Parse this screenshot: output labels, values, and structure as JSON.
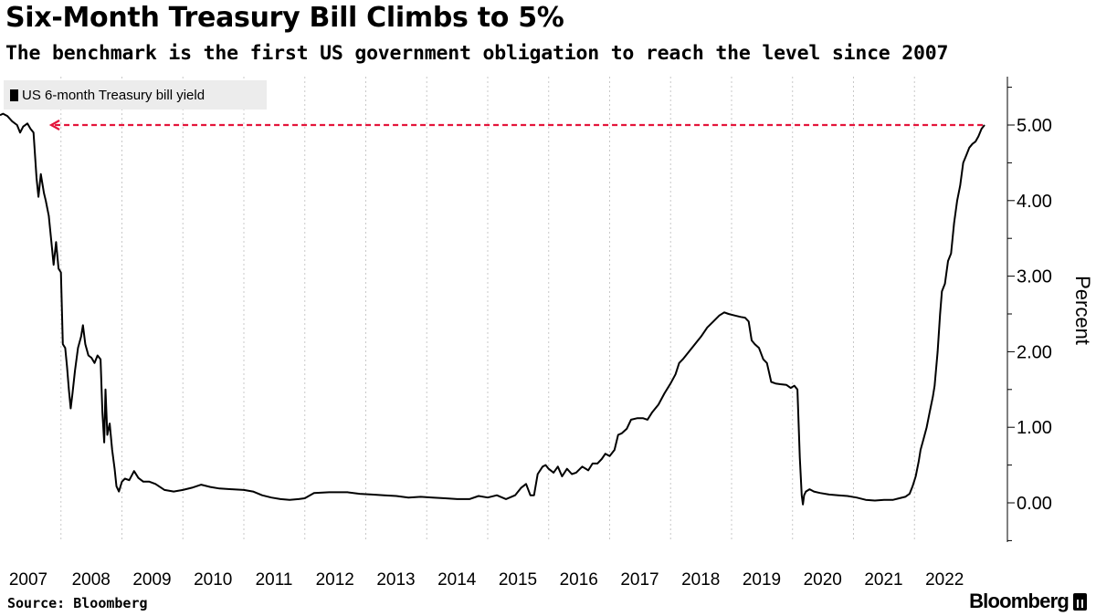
{
  "header": {
    "title": "Six-Month Treasury Bill Climbs to 5%",
    "subtitle": "The benchmark is the first US government obligation to reach the level since 2007"
  },
  "footer": {
    "source": "Source: Bloomberg",
    "brand": "Bloomberg"
  },
  "chart_data": {
    "type": "line",
    "ylabel": "Percent",
    "xlabel": "",
    "ylim": [
      -0.5,
      5.6
    ],
    "xlim": [
      2007.0,
      2023.15
    ],
    "grid": {
      "vertical": true,
      "horizontal": false,
      "style": "dotted"
    },
    "legend_position": "top-left",
    "yticks": [
      0,
      1,
      2,
      3,
      4,
      5
    ],
    "ytick_labels": [
      "0.00",
      "1.00",
      "2.00",
      "3.00",
      "4.00",
      "5.00"
    ],
    "xtick_labels": [
      "2007",
      "2008",
      "2009",
      "2010",
      "2011",
      "2012",
      "2013",
      "2014",
      "2015",
      "2016",
      "2017",
      "2018",
      "2019",
      "2020",
      "2021",
      "2022"
    ],
    "xtick_positions": [
      2007,
      2008,
      2009,
      2010,
      2011,
      2012,
      2013,
      2014,
      2015,
      2016,
      2017,
      2018,
      2019,
      2020,
      2021,
      2022
    ],
    "series": [
      {
        "name": "US 6-month Treasury bill yield",
        "color": "#000000",
        "points": [
          [
            2007.0,
            5.13
          ],
          [
            2007.05,
            5.15
          ],
          [
            2007.12,
            5.12
          ],
          [
            2007.2,
            5.05
          ],
          [
            2007.28,
            5.0
          ],
          [
            2007.33,
            4.9
          ],
          [
            2007.38,
            4.98
          ],
          [
            2007.45,
            5.02
          ],
          [
            2007.5,
            4.95
          ],
          [
            2007.55,
            4.9
          ],
          [
            2007.6,
            4.3
          ],
          [
            2007.63,
            4.05
          ],
          [
            2007.67,
            4.35
          ],
          [
            2007.72,
            4.1
          ],
          [
            2007.75,
            4.0
          ],
          [
            2007.8,
            3.8
          ],
          [
            2007.85,
            3.4
          ],
          [
            2007.88,
            3.15
          ],
          [
            2007.92,
            3.45
          ],
          [
            2007.96,
            3.1
          ],
          [
            2008.0,
            3.05
          ],
          [
            2008.03,
            2.1
          ],
          [
            2008.07,
            2.05
          ],
          [
            2008.1,
            1.8
          ],
          [
            2008.13,
            1.5
          ],
          [
            2008.16,
            1.25
          ],
          [
            2008.19,
            1.45
          ],
          [
            2008.23,
            1.75
          ],
          [
            2008.28,
            2.05
          ],
          [
            2008.33,
            2.2
          ],
          [
            2008.36,
            2.35
          ],
          [
            2008.4,
            2.1
          ],
          [
            2008.45,
            1.95
          ],
          [
            2008.5,
            1.92
          ],
          [
            2008.55,
            1.85
          ],
          [
            2008.6,
            1.95
          ],
          [
            2008.65,
            1.9
          ],
          [
            2008.68,
            1.2
          ],
          [
            2008.71,
            0.8
          ],
          [
            2008.73,
            1.5
          ],
          [
            2008.76,
            0.9
          ],
          [
            2008.8,
            1.05
          ],
          [
            2008.84,
            0.7
          ],
          [
            2008.88,
            0.45
          ],
          [
            2008.91,
            0.22
          ],
          [
            2008.95,
            0.15
          ],
          [
            2009.0,
            0.28
          ],
          [
            2009.05,
            0.32
          ],
          [
            2009.12,
            0.3
          ],
          [
            2009.2,
            0.42
          ],
          [
            2009.27,
            0.33
          ],
          [
            2009.35,
            0.28
          ],
          [
            2009.45,
            0.28
          ],
          [
            2009.55,
            0.25
          ],
          [
            2009.7,
            0.17
          ],
          [
            2009.85,
            0.15
          ],
          [
            2010.0,
            0.17
          ],
          [
            2010.15,
            0.2
          ],
          [
            2010.3,
            0.24
          ],
          [
            2010.45,
            0.21
          ],
          [
            2010.6,
            0.19
          ],
          [
            2010.8,
            0.18
          ],
          [
            2011.0,
            0.17
          ],
          [
            2011.15,
            0.15
          ],
          [
            2011.3,
            0.1
          ],
          [
            2011.45,
            0.07
          ],
          [
            2011.6,
            0.05
          ],
          [
            2011.75,
            0.04
          ],
          [
            2011.9,
            0.05
          ],
          [
            2012.0,
            0.06
          ],
          [
            2012.15,
            0.13
          ],
          [
            2012.4,
            0.14
          ],
          [
            2012.7,
            0.14
          ],
          [
            2012.9,
            0.12
          ],
          [
            2013.1,
            0.11
          ],
          [
            2013.3,
            0.1
          ],
          [
            2013.5,
            0.09
          ],
          [
            2013.7,
            0.07
          ],
          [
            2013.9,
            0.08
          ],
          [
            2014.1,
            0.07
          ],
          [
            2014.3,
            0.06
          ],
          [
            2014.5,
            0.05
          ],
          [
            2014.7,
            0.05
          ],
          [
            2014.85,
            0.09
          ],
          [
            2015.0,
            0.07
          ],
          [
            2015.15,
            0.1
          ],
          [
            2015.3,
            0.05
          ],
          [
            2015.45,
            0.1
          ],
          [
            2015.55,
            0.2
          ],
          [
            2015.63,
            0.25
          ],
          [
            2015.7,
            0.1
          ],
          [
            2015.76,
            0.1
          ],
          [
            2015.82,
            0.38
          ],
          [
            2015.9,
            0.48
          ],
          [
            2015.95,
            0.5
          ],
          [
            2016.0,
            0.45
          ],
          [
            2016.08,
            0.4
          ],
          [
            2016.15,
            0.48
          ],
          [
            2016.22,
            0.35
          ],
          [
            2016.3,
            0.45
          ],
          [
            2016.38,
            0.38
          ],
          [
            2016.45,
            0.4
          ],
          [
            2016.55,
            0.48
          ],
          [
            2016.65,
            0.43
          ],
          [
            2016.72,
            0.52
          ],
          [
            2016.8,
            0.52
          ],
          [
            2016.87,
            0.58
          ],
          [
            2016.93,
            0.65
          ],
          [
            2017.0,
            0.62
          ],
          [
            2017.08,
            0.7
          ],
          [
            2017.14,
            0.9
          ],
          [
            2017.2,
            0.92
          ],
          [
            2017.28,
            0.98
          ],
          [
            2017.35,
            1.1
          ],
          [
            2017.45,
            1.12
          ],
          [
            2017.55,
            1.12
          ],
          [
            2017.62,
            1.1
          ],
          [
            2017.7,
            1.2
          ],
          [
            2017.8,
            1.3
          ],
          [
            2017.9,
            1.45
          ],
          [
            2018.0,
            1.58
          ],
          [
            2018.08,
            1.7
          ],
          [
            2018.14,
            1.85
          ],
          [
            2018.2,
            1.9
          ],
          [
            2018.3,
            2.0
          ],
          [
            2018.4,
            2.1
          ],
          [
            2018.5,
            2.2
          ],
          [
            2018.6,
            2.32
          ],
          [
            2018.7,
            2.4
          ],
          [
            2018.8,
            2.48
          ],
          [
            2018.88,
            2.52
          ],
          [
            2018.95,
            2.5
          ],
          [
            2019.05,
            2.48
          ],
          [
            2019.15,
            2.46
          ],
          [
            2019.22,
            2.45
          ],
          [
            2019.28,
            2.4
          ],
          [
            2019.33,
            2.15
          ],
          [
            2019.38,
            2.1
          ],
          [
            2019.45,
            2.05
          ],
          [
            2019.52,
            1.9
          ],
          [
            2019.58,
            1.85
          ],
          [
            2019.65,
            1.6
          ],
          [
            2019.72,
            1.58
          ],
          [
            2019.8,
            1.57
          ],
          [
            2019.9,
            1.56
          ],
          [
            2019.97,
            1.52
          ],
          [
            2020.03,
            1.55
          ],
          [
            2020.08,
            1.5
          ],
          [
            2020.12,
            0.6
          ],
          [
            2020.15,
            0.1
          ],
          [
            2020.17,
            -0.02
          ],
          [
            2020.19,
            0.1
          ],
          [
            2020.22,
            0.15
          ],
          [
            2020.28,
            0.18
          ],
          [
            2020.35,
            0.15
          ],
          [
            2020.45,
            0.13
          ],
          [
            2020.6,
            0.11
          ],
          [
            2020.75,
            0.1
          ],
          [
            2020.9,
            0.09
          ],
          [
            2021.05,
            0.07
          ],
          [
            2021.2,
            0.04
          ],
          [
            2021.35,
            0.03
          ],
          [
            2021.5,
            0.04
          ],
          [
            2021.65,
            0.04
          ],
          [
            2021.75,
            0.06
          ],
          [
            2021.85,
            0.08
          ],
          [
            2021.92,
            0.12
          ],
          [
            2021.97,
            0.22
          ],
          [
            2022.02,
            0.35
          ],
          [
            2022.07,
            0.55
          ],
          [
            2022.1,
            0.7
          ],
          [
            2022.15,
            0.85
          ],
          [
            2022.2,
            1.0
          ],
          [
            2022.25,
            1.2
          ],
          [
            2022.3,
            1.4
          ],
          [
            2022.33,
            1.55
          ],
          [
            2022.38,
            2.0
          ],
          [
            2022.42,
            2.5
          ],
          [
            2022.45,
            2.8
          ],
          [
            2022.5,
            2.9
          ],
          [
            2022.55,
            3.2
          ],
          [
            2022.6,
            3.3
          ],
          [
            2022.65,
            3.7
          ],
          [
            2022.7,
            4.0
          ],
          [
            2022.75,
            4.2
          ],
          [
            2022.8,
            4.5
          ],
          [
            2022.85,
            4.6
          ],
          [
            2022.9,
            4.7
          ],
          [
            2022.95,
            4.75
          ],
          [
            2023.0,
            4.78
          ],
          [
            2023.05,
            4.85
          ],
          [
            2023.1,
            4.95
          ],
          [
            2023.15,
            5.0
          ]
        ]
      }
    ],
    "annotations": [
      {
        "type": "reference-line",
        "from_x": 2007.84,
        "to_x": 2023.15,
        "y": 5.0,
        "style": "dashed",
        "arrow": "left",
        "color": "#e4153b"
      }
    ]
  }
}
